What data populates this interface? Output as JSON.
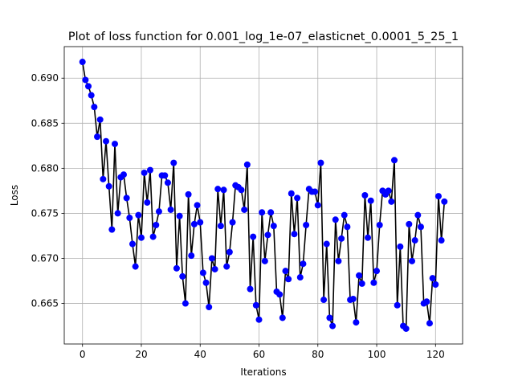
{
  "chart_data": {
    "type": "line",
    "title": "Plot of loss function for 0.001_log_1e-07_elasticnet_0.0001_5_25_1",
    "xlabel": "Iterations",
    "ylabel": "Loss",
    "xlim": [
      -6.2,
      129.2
    ],
    "ylim": [
      0.6605,
      0.6935
    ],
    "xticks": [
      0,
      20,
      40,
      60,
      80,
      100,
      120
    ],
    "yticks": [
      0.665,
      0.67,
      0.675,
      0.68,
      0.685,
      0.69
    ],
    "ytick_labels": [
      "0.665",
      "0.670",
      "0.675",
      "0.680",
      "0.685",
      "0.690"
    ],
    "grid": true,
    "line_color": "#000000",
    "marker_color": "#0000ff",
    "x": [
      0,
      1,
      2,
      3,
      4,
      5,
      6,
      7,
      8,
      9,
      10,
      11,
      12,
      13,
      14,
      15,
      16,
      17,
      18,
      19,
      20,
      21,
      22,
      23,
      24,
      25,
      26,
      27,
      28,
      29,
      30,
      31,
      32,
      33,
      34,
      35,
      36,
      37,
      38,
      39,
      40,
      41,
      42,
      43,
      44,
      45,
      46,
      47,
      48,
      49,
      50,
      51,
      52,
      53,
      54,
      55,
      56,
      57,
      58,
      59,
      60,
      61,
      62,
      63,
      64,
      65,
      66,
      67,
      68,
      69,
      70,
      71,
      72,
      73,
      74,
      75,
      76,
      77,
      78,
      79,
      80,
      81,
      82,
      83,
      84,
      85,
      86,
      87,
      88,
      89,
      90,
      91,
      92,
      93,
      94,
      95,
      96,
      97,
      98,
      99,
      100,
      101,
      102,
      103,
      104,
      105,
      106,
      107,
      108,
      109,
      110,
      111,
      112,
      113,
      114,
      115,
      116,
      117,
      118,
      119,
      120,
      121,
      122,
      123
    ],
    "series": [
      {
        "values": [
          0.6918,
          0.6898,
          0.6891,
          0.6881,
          0.6868,
          0.6835,
          0.6854,
          0.6788,
          0.683,
          0.678,
          0.6732,
          0.6827,
          0.675,
          0.679,
          0.6793,
          0.6767,
          0.6745,
          0.6716,
          0.6691,
          0.6748,
          0.6723,
          0.6795,
          0.6762,
          0.6798,
          0.6724,
          0.6737,
          0.6752,
          0.6792,
          0.6792,
          0.6784,
          0.6754,
          0.6806,
          0.6689,
          0.6747,
          0.668,
          0.665,
          0.6771,
          0.6703,
          0.6738,
          0.6759,
          0.674,
          0.6684,
          0.6673,
          0.6646,
          0.67,
          0.6688,
          0.6777,
          0.6736,
          0.6776,
          0.6691,
          0.6707,
          0.674,
          0.6781,
          0.6779,
          0.6776,
          0.6754,
          0.6804,
          0.6666,
          0.6724,
          0.6648,
          0.6632,
          0.6751,
          0.6697,
          0.6726,
          0.6751,
          0.6736,
          0.6663,
          0.666,
          0.6634,
          0.6686,
          0.6677,
          0.6772,
          0.6727,
          0.6767,
          0.6679,
          0.6694,
          0.6737,
          0.6777,
          0.6774,
          0.6774,
          0.6759,
          0.6806,
          0.6654,
          0.6716,
          0.6634,
          0.6625,
          0.6743,
          0.6697,
          0.6722,
          0.6748,
          0.6735,
          0.6654,
          0.6655,
          0.6629,
          0.6681,
          0.6672,
          0.677,
          0.6723,
          0.6764,
          0.6673,
          0.6686,
          0.6737,
          0.6775,
          0.6771,
          0.6775,
          0.6763,
          0.6809,
          0.6648,
          0.6713,
          0.6625,
          0.6622,
          0.6738,
          0.6697,
          0.672,
          0.6748,
          0.6735,
          0.665,
          0.6652,
          0.6628,
          0.6678,
          0.6671,
          0.6769,
          0.672,
          0.6763
        ]
      }
    ]
  }
}
